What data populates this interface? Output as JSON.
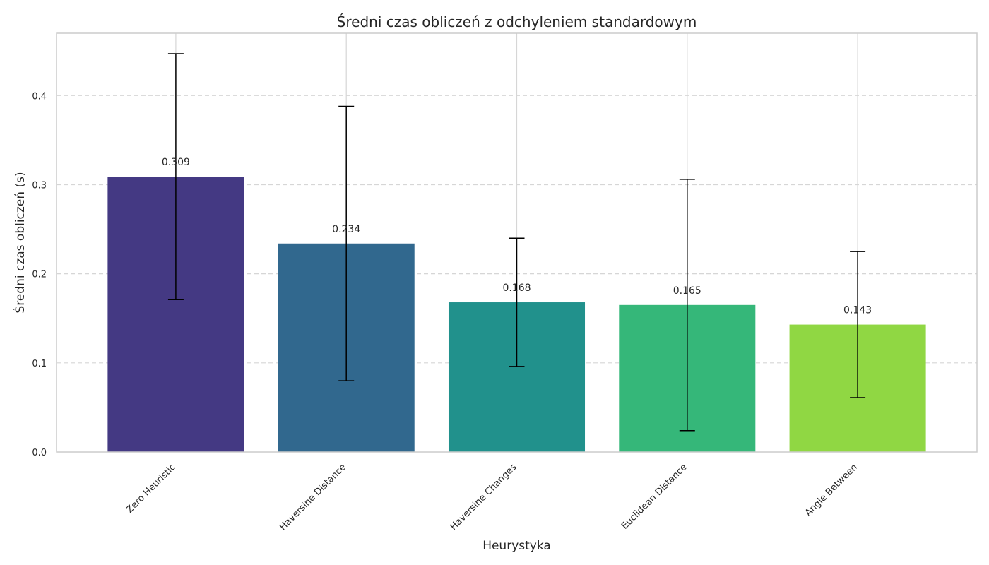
{
  "chart_data": {
    "type": "bar",
    "title": "Średni czas obliczeń z odchyleniem standardowym",
    "xlabel": "Heurystyka",
    "ylabel": "Średni czas obliczeń (s)",
    "categories": [
      "Zero Heuristic",
      "Haversine Distance",
      "Haversine Changes",
      "Euclidean Distance",
      "Angle Between"
    ],
    "values": [
      0.309,
      0.234,
      0.168,
      0.165,
      0.143
    ],
    "value_labels": [
      "0.309",
      "0.234",
      "0.168",
      "0.165",
      "0.143"
    ],
    "error": [
      0.138,
      0.154,
      0.072,
      0.141,
      0.082
    ],
    "colors": [
      "#443983",
      "#31688e",
      "#21918c",
      "#35b779",
      "#90d743"
    ],
    "ylim": [
      0,
      0.47
    ],
    "yticks": [
      0.0,
      0.1,
      0.2,
      0.3,
      0.4
    ],
    "ytick_labels": [
      "0.0",
      "0.1",
      "0.2",
      "0.3",
      "0.4"
    ],
    "grid": {
      "y": "dashed",
      "x": "solid"
    },
    "legend": "none"
  }
}
